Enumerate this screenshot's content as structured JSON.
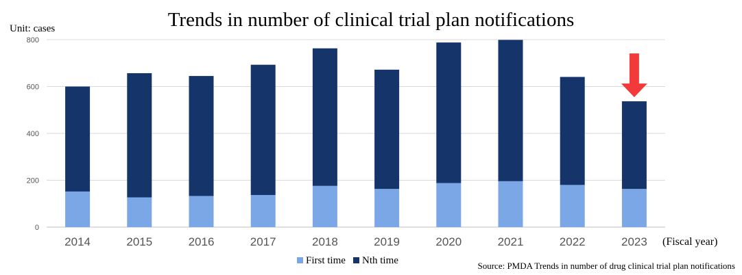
{
  "chart_data": {
    "type": "bar",
    "stacked": true,
    "title": "Trends in number of clinical trial plan notifications",
    "unit_label": "Unit: cases",
    "xlabel": "(Fiscal year)",
    "source": "Source: PMDA  Trends in number of drug clinical trial plan notifications",
    "categories": [
      "2014",
      "2015",
      "2016",
      "2017",
      "2018",
      "2019",
      "2020",
      "2021",
      "2022",
      "2023"
    ],
    "series": [
      {
        "name": "First time",
        "color": "#7ba7e6",
        "values": [
          152,
          127,
          133,
          137,
          176,
          163,
          188,
          196,
          180,
          163
        ]
      },
      {
        "name": "Nth time",
        "color": "#14346a",
        "values": [
          448,
          530,
          512,
          556,
          587,
          509,
          600,
          603,
          461,
          374
        ]
      }
    ],
    "ylim": [
      0,
      800
    ],
    "yticks": [
      0,
      200,
      400,
      600,
      800
    ],
    "grid": true,
    "legend": "bottom-center",
    "annotation": {
      "type": "down-arrow",
      "category": "2023",
      "color": "#f23a3a",
      "icon": "red-down-arrow-icon"
    }
  }
}
